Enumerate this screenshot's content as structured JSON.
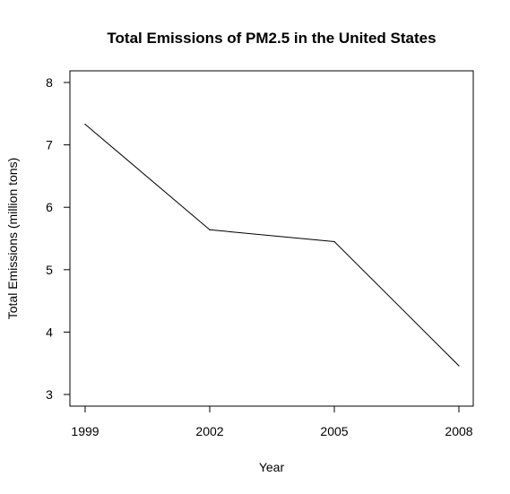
{
  "chart_data": {
    "type": "line",
    "title": "Total Emissions of PM2.5 in the United States",
    "xlabel": "Year",
    "ylabel": "Total Emissions (million tons)",
    "x": [
      1999,
      2002,
      2005,
      2008
    ],
    "series": [
      {
        "values": [
          7.33,
          5.64,
          5.45,
          3.46
        ],
        "color": "#000000"
      }
    ],
    "xlim": [
      1999,
      2008
    ],
    "ylim": [
      3,
      8
    ],
    "xticks": [
      1999,
      2002,
      2005,
      2008
    ],
    "yticks": [
      3,
      4,
      5,
      6,
      7,
      8
    ],
    "xtick_labels": [
      "1999",
      "2002",
      "2005",
      "2008"
    ],
    "ytick_labels": [
      "3",
      "4",
      "5",
      "6",
      "7",
      "8"
    ],
    "grid": false,
    "legend": "none"
  }
}
